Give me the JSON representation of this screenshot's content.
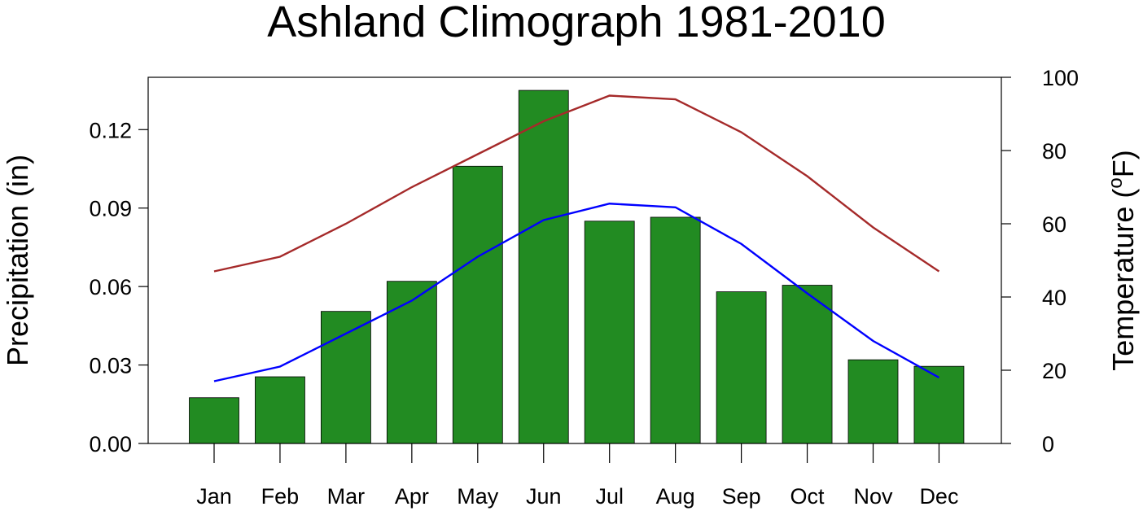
{
  "chart_data": {
    "type": "bar",
    "title": "Ashland Climograph 1981-2010",
    "categories": [
      "Jan",
      "Feb",
      "Mar",
      "Apr",
      "May",
      "Jun",
      "Jul",
      "Aug",
      "Sep",
      "Oct",
      "Nov",
      "Dec"
    ],
    "ylabel": "Precipitation (in)",
    "ylim": [
      0,
      0.14
    ],
    "yticks": [
      "0.00",
      "0.03",
      "0.06",
      "0.09",
      "0.12"
    ],
    "y2label_prefix": "Temperature (",
    "y2label_degree": "o",
    "y2label_suffix": "F)",
    "y2lim": [
      0,
      100
    ],
    "y2ticks": [
      "0",
      "20",
      "40",
      "60",
      "80",
      "100"
    ],
    "legend": "none",
    "grid": false,
    "series": [
      {
        "kind": "bar",
        "axis": "left",
        "color": "#228B22",
        "values": [
          0.0175,
          0.0255,
          0.0505,
          0.062,
          0.106,
          0.135,
          0.085,
          0.0865,
          0.058,
          0.0605,
          0.032,
          0.0295
        ]
      },
      {
        "kind": "line",
        "axis": "right",
        "color": "#A52A2A",
        "values": [
          47,
          51,
          60,
          70,
          79,
          88,
          95,
          94,
          85,
          73,
          59,
          47
        ]
      },
      {
        "kind": "line",
        "axis": "right",
        "color": "#0000FF",
        "values": [
          17,
          21,
          30,
          39,
          51,
          61,
          65.5,
          64.5,
          54.5,
          41,
          28,
          18
        ]
      }
    ]
  }
}
